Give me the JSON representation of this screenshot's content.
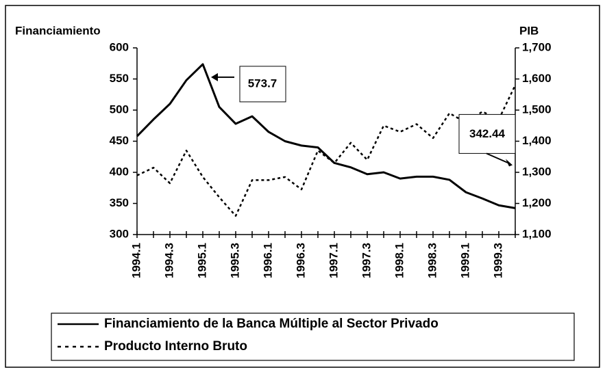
{
  "chart_data": {
    "type": "line",
    "y_label": "Financiamiento",
    "y2_label": "PIB",
    "categories": [
      "1994.1",
      null,
      "1994.3",
      null,
      "1995.1",
      null,
      "1995.3",
      null,
      "1996.1",
      null,
      "1996.3",
      null,
      "1997.1",
      null,
      "1997.3",
      null,
      "1998.1",
      null,
      "1998.3",
      null,
      "1999.1",
      null,
      "1999.3",
      null
    ],
    "series": [
      {
        "name": "Financiamiento de la Banca Múltiple al Sector Privado",
        "color": "#000000",
        "dashed": false,
        "values": [
          458,
          485,
          510,
          548,
          573.7,
          505,
          478,
          490,
          465,
          450,
          443,
          440,
          415,
          408,
          397,
          400,
          390,
          393,
          393,
          388,
          368,
          358,
          347,
          342.44
        ]
      },
      {
        "name": "Producto Interno Bruto",
        "color": "#000000",
        "dashed": true,
        "axis": "y2",
        "values": [
          1290,
          1315,
          1265,
          1370,
          1285,
          1220,
          1160,
          1275,
          1275,
          1285,
          1245,
          1370,
          1330,
          1395,
          1340,
          1450,
          1430,
          1455,
          1410,
          1490,
          1460,
          1495,
          1470,
          1580
        ]
      }
    ],
    "ylim": [
      300,
      600
    ],
    "yticks": [
      300,
      350,
      400,
      450,
      500,
      550,
      600
    ],
    "y2lim": [
      1100,
      1700
    ],
    "y2ticks": [
      {
        "value": 1100,
        "label": "1,100"
      },
      {
        "value": 1200,
        "label": "1,200"
      },
      {
        "value": 1300,
        "label": "1,300"
      },
      {
        "value": 1400,
        "label": "1,400"
      },
      {
        "value": 1500,
        "label": "1,500"
      },
      {
        "value": 1600,
        "label": "1,600"
      },
      {
        "value": 1700,
        "label": "1,700"
      }
    ],
    "grid": false
  }
}
